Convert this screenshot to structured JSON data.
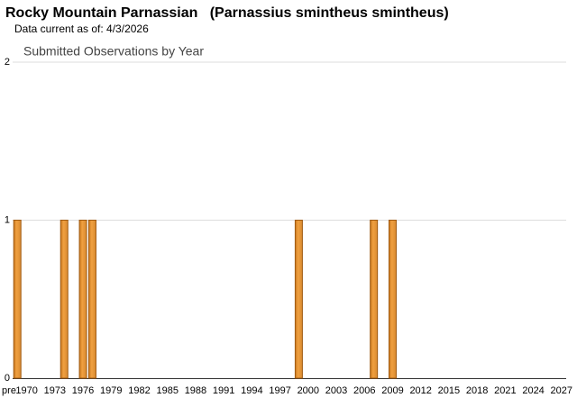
{
  "chart_data": {
    "type": "bar",
    "title": "Rocky Mountain Parnassian   (Parnassius smintheus smintheus)",
    "subtitle": "Data current as of: 4/3/2026",
    "chart_title": "Submitted Observations by Year",
    "categories": [
      "pre",
      "1970",
      null,
      null,
      "1973",
      null,
      null,
      "1976",
      null,
      null,
      "1979",
      null,
      null,
      "1982",
      null,
      null,
      "1985",
      null,
      null,
      "1988",
      null,
      null,
      "1991",
      null,
      null,
      "1994",
      null,
      null,
      "1997",
      null,
      null,
      "2000",
      null,
      null,
      "2003",
      null,
      null,
      "2006",
      null,
      null,
      "2009",
      null,
      null,
      "2012",
      null,
      null,
      "2015",
      null,
      null,
      "2018",
      null,
      null,
      "2021",
      null,
      null,
      "2024",
      null,
      null,
      "2027"
    ],
    "values": [
      1,
      0,
      0,
      0,
      0,
      1,
      0,
      1,
      1,
      0,
      0,
      0,
      0,
      0,
      0,
      0,
      0,
      0,
      0,
      0,
      0,
      0,
      0,
      0,
      0,
      0,
      0,
      0,
      0,
      0,
      1,
      0,
      0,
      0,
      0,
      0,
      0,
      0,
      1,
      0,
      1,
      0,
      0,
      0,
      0,
      0,
      0,
      0,
      0,
      0,
      0,
      0,
      0,
      0,
      0,
      0,
      0,
      0,
      0
    ],
    "color": "#f0a040",
    "ylim": [
      0,
      2
    ],
    "yticks": [
      0,
      1,
      2
    ],
    "grid": true
  }
}
